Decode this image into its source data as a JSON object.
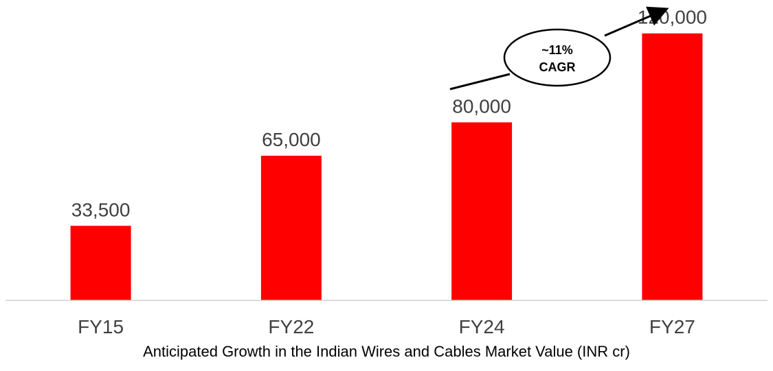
{
  "chart_data": {
    "type": "bar",
    "categories": [
      "FY15",
      "FY22",
      "FY24",
      "FY27"
    ],
    "values": [
      33500,
      65000,
      80000,
      120000
    ],
    "value_labels": [
      "33,500",
      "65,000",
      "80,000",
      "120,000"
    ],
    "title": "Anticipated Growth in the Indian Wires and Cables Market Value (INR cr)",
    "xlabel": "",
    "ylabel": "",
    "ylim": [
      0,
      135000
    ],
    "grid": false,
    "legend": "none",
    "bar_color": "#ff0000",
    "annotation": {
      "line1": "~11%",
      "line2": "CAGR"
    }
  }
}
